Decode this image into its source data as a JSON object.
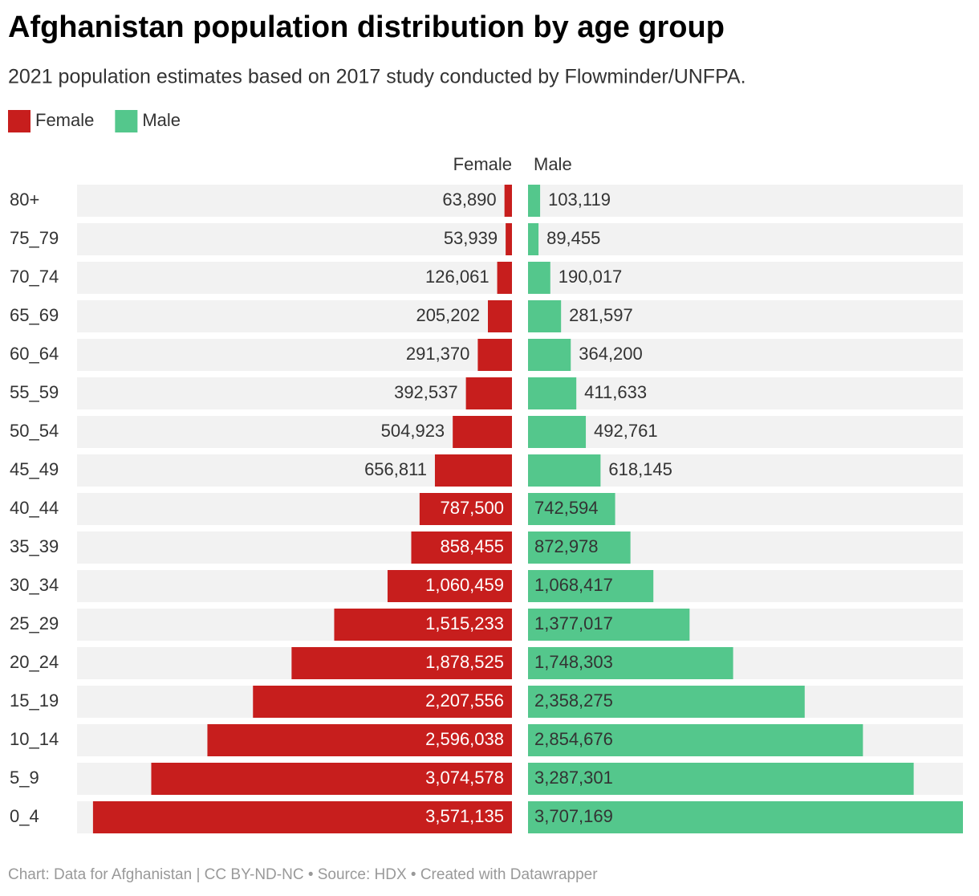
{
  "chart_data": {
    "type": "pyramid",
    "title": "Afghanistan population distribution by age group",
    "subtitle": "2021 population estimates based on 2017 study conducted by Flowminder/UNFPA.",
    "footer": "Chart: Data for Afghanistan | CC BY-ND-NC • Source: HDX • Created with Datawrapper",
    "categories": [
      "80+",
      "75_79",
      "70_74",
      "65_69",
      "60_64",
      "55_59",
      "50_54",
      "45_49",
      "40_44",
      "35_39",
      "30_34",
      "25_29",
      "20_24",
      "15_19",
      "10_14",
      "5_9",
      "0_4"
    ],
    "series": [
      {
        "name": "Female",
        "color": "#c71e1d",
        "values": [
          63890,
          53939,
          126061,
          205202,
          291370,
          392537,
          504923,
          656811,
          787500,
          858455,
          1060459,
          1515233,
          1878525,
          2207556,
          2596038,
          3074578,
          3571135
        ],
        "value_labels": [
          "63,890",
          "53,939",
          "126,061",
          "205,202",
          "291,370",
          "392,537",
          "504,923",
          "656,811",
          "787,500",
          "858,455",
          "1,060,459",
          "1,515,233",
          "1,878,525",
          "2,207,556",
          "2,596,038",
          "3,074,578",
          "3,571,135"
        ]
      },
      {
        "name": "Male",
        "color": "#54c78c",
        "values": [
          103119,
          89455,
          190017,
          281597,
          364200,
          411633,
          492761,
          618145,
          742594,
          872978,
          1068417,
          1377017,
          1748303,
          2358275,
          2854676,
          3287301,
          3707169
        ],
        "value_labels": [
          "103,119",
          "89,455",
          "190,017",
          "281,597",
          "364,200",
          "411,633",
          "492,761",
          "618,145",
          "742,594",
          "872,978",
          "1,068,417",
          "1,377,017",
          "1,748,303",
          "2,358,275",
          "2,854,676",
          "3,287,301",
          "3,707,169"
        ]
      }
    ]
  }
}
